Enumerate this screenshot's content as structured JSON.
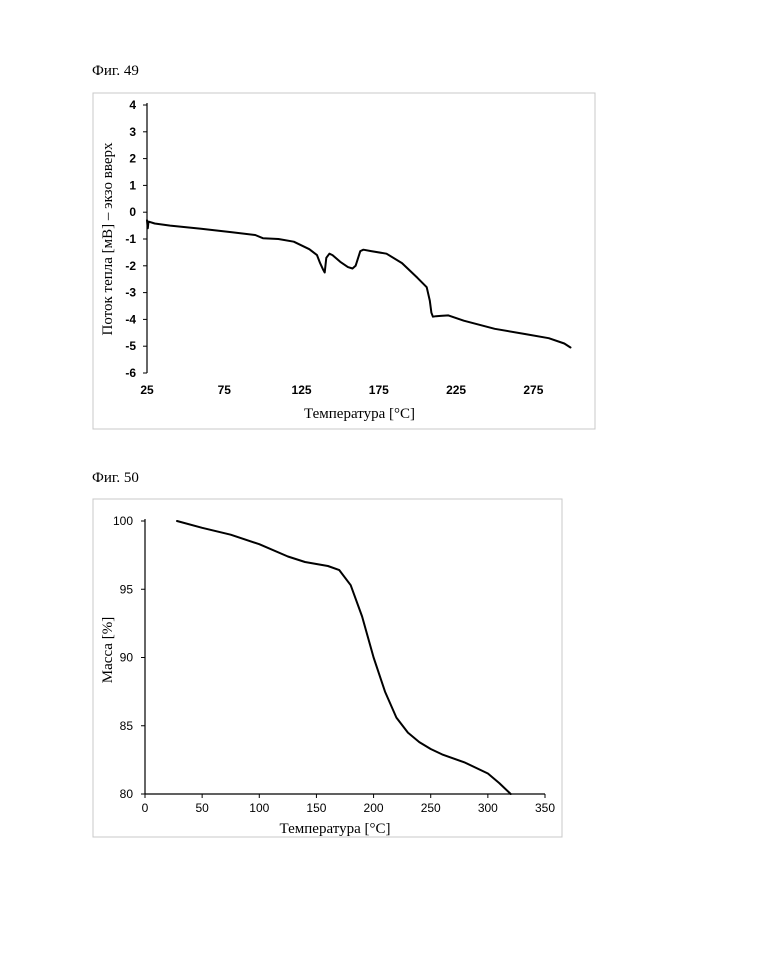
{
  "figures": [
    {
      "label": "Фиг. 49"
    },
    {
      "label": "Фиг. 50"
    }
  ],
  "chart_data": [
    {
      "type": "line",
      "title": "",
      "xlabel": "Температура [°C]",
      "ylabel": "Поток тепла [мВ] – экзо вверх",
      "xlim": [
        25,
        300
      ],
      "ylim": [
        -6,
        4
      ],
      "xticks": [
        25,
        75,
        125,
        175,
        225,
        275
      ],
      "yticks": [
        4,
        3,
        2,
        1,
        0,
        -1,
        -2,
        -3,
        -4,
        -5,
        -6
      ],
      "grid": false,
      "series": [
        {
          "name": "",
          "x": [
            25,
            25.5,
            26,
            30,
            40,
            60,
            80,
            95,
            100,
            110,
            120,
            130,
            135,
            137,
            139,
            140,
            141,
            143,
            145,
            150,
            155,
            158,
            160,
            163,
            165,
            170,
            180,
            190,
            200,
            206,
            208,
            209,
            210,
            212,
            215,
            220,
            230,
            250,
            270,
            285,
            295,
            299
          ],
          "y": [
            -0.3,
            -0.6,
            -0.35,
            -0.42,
            -0.5,
            -0.62,
            -0.75,
            -0.85,
            -0.97,
            -1.0,
            -1.1,
            -1.38,
            -1.6,
            -1.9,
            -2.15,
            -2.25,
            -1.7,
            -1.55,
            -1.6,
            -1.85,
            -2.05,
            -2.1,
            -2.0,
            -1.45,
            -1.4,
            -1.45,
            -1.55,
            -1.9,
            -2.45,
            -2.8,
            -3.3,
            -3.75,
            -3.9,
            -3.88,
            -3.87,
            -3.85,
            -4.05,
            -4.35,
            -4.55,
            -4.7,
            -4.9,
            -5.05
          ]
        }
      ]
    },
    {
      "type": "line",
      "title": "",
      "xlabel": "Температура [°C]",
      "ylabel": "Масса [%]",
      "xlim": [
        0,
        350
      ],
      "ylim": [
        80,
        100
      ],
      "xticks": [
        0,
        50,
        100,
        150,
        200,
        250,
        300,
        350
      ],
      "yticks": [
        100,
        95,
        90,
        85,
        80
      ],
      "grid": false,
      "series": [
        {
          "name": "",
          "x": [
            28,
            50,
            75,
            100,
            125,
            140,
            150,
            160,
            170,
            180,
            190,
            200,
            210,
            220,
            230,
            240,
            250,
            260,
            280,
            300,
            310,
            320
          ],
          "y": [
            100,
            99.5,
            99.0,
            98.3,
            97.4,
            97.0,
            96.85,
            96.7,
            96.4,
            95.3,
            93.0,
            90.0,
            87.5,
            85.6,
            84.5,
            83.8,
            83.3,
            82.9,
            82.3,
            81.5,
            80.8,
            80.0
          ]
        }
      ]
    }
  ]
}
